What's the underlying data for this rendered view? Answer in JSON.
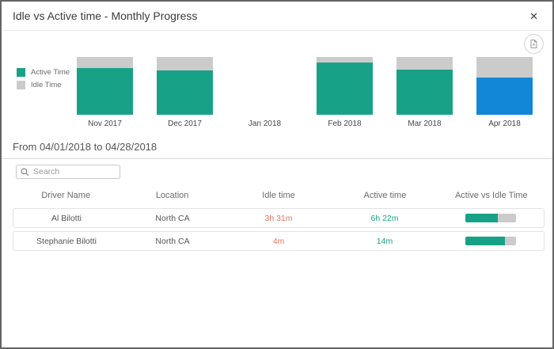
{
  "modal": {
    "title": "Idle vs Active time - Monthly Progress"
  },
  "icons": {
    "close_glyph": "✕",
    "export": "export-report-icon",
    "search": "search-icon"
  },
  "colors": {
    "active": "#17a287",
    "idle": "#cbcbcb",
    "selected": "#1287d8",
    "idle_value_text": "#e8745a",
    "active_value_text": "#17a287",
    "driver_text": "#555555"
  },
  "legend": [
    {
      "label": "Active Time",
      "color": "#17a287"
    },
    {
      "label": "Idle Time",
      "color": "#cbcbcb"
    }
  ],
  "chart_data": {
    "type": "bar",
    "stacked": true,
    "categories": [
      "Nov 2017",
      "Dec 2017",
      "Jan 2018",
      "Feb 2018",
      "Mar 2018",
      "Apr 2018"
    ],
    "series": [
      {
        "name": "Active Time",
        "values": [
          81,
          77,
          null,
          90,
          78,
          65
        ]
      },
      {
        "name": "Idle Time",
        "values": [
          19,
          23,
          null,
          10,
          22,
          35
        ]
      }
    ],
    "unit": "percent of month total",
    "selected_category": "Apr 2018",
    "legend_position": "left",
    "grid": false,
    "ylim": [
      0,
      100
    ]
  },
  "range_label": "From 04/01/2018 to 04/28/2018",
  "search": {
    "placeholder": "Search"
  },
  "table": {
    "columns": [
      "Driver Name",
      "Location",
      "Idle time",
      "Active time",
      "Active vs Idle Time"
    ],
    "rows": [
      {
        "driver": "Al Bilotti",
        "location": "North CA",
        "idle_time": "3h 31m",
        "active_time": "6h 22m",
        "active_pct": 64
      },
      {
        "driver": "Stephanie Bilotti",
        "location": "North CA",
        "idle_time": "4m",
        "active_time": "14m",
        "active_pct": 78
      }
    ]
  }
}
